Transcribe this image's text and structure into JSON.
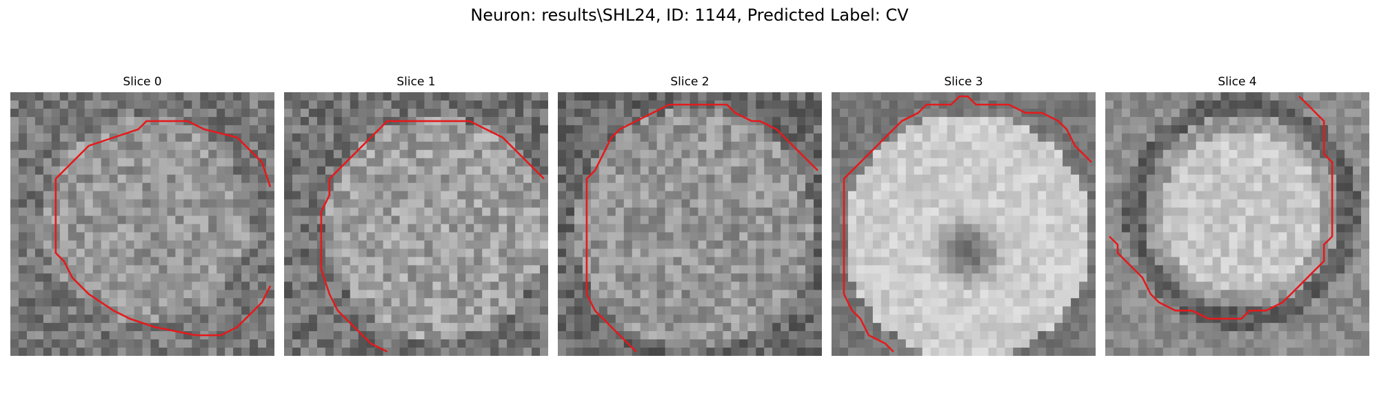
{
  "figure": {
    "title": "Neuron: results\\SHL24, ID: 1144, Predicted Label: CV"
  },
  "slices": [
    {
      "title": "Slice 0",
      "image": "grayscale-microscopy-patch",
      "has_contour": true
    },
    {
      "title": "Slice 1",
      "image": "grayscale-microscopy-patch",
      "has_contour": true
    },
    {
      "title": "Slice 2",
      "image": "grayscale-microscopy-patch",
      "has_contour": true
    },
    {
      "title": "Slice 3",
      "image": "grayscale-microscopy-patch",
      "has_contour": true
    },
    {
      "title": "Slice 4",
      "image": "grayscale-microscopy-patch",
      "has_contour": true
    }
  ],
  "colors": {
    "contour": "#e41a1c",
    "background": "#ffffff"
  }
}
